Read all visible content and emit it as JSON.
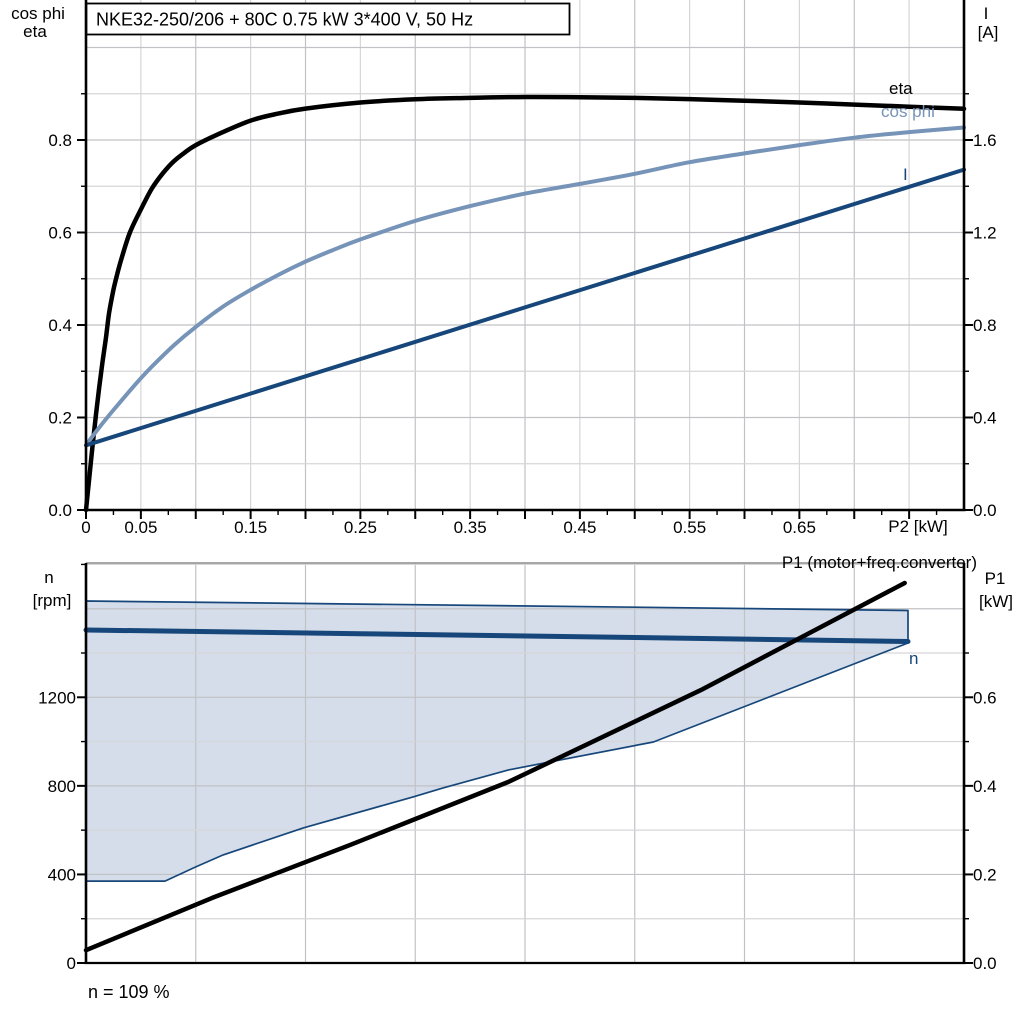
{
  "header": {
    "title": "NKE32-250/206 + 80C   0.75 kW   3*400 V, 50 Hz"
  },
  "labels": {
    "top_left": [
      "cos phi",
      "eta"
    ],
    "top_right": [
      "I",
      "[A]"
    ],
    "x_axis_title": "P2 [kW]",
    "curve_eta": "eta",
    "curve_cos_phi": "cos phi",
    "curve_current": "I",
    "bottom_left": [
      "n",
      "[rpm]"
    ],
    "bottom_right": [
      "P1",
      "[kW]"
    ],
    "p1_annotation": "P1 (motor+freq.converter)",
    "n_annotation": "n",
    "note": "n = 109 %"
  },
  "colors": {
    "black": "#000000",
    "light_blue": "#7693b8",
    "dark_blue": "#17477a",
    "area_fill": "#d4dde9",
    "grid_minor": "#d6d6d9",
    "grid_major": "#c2c2c6",
    "bottom_top_border": "#8c8c8c"
  },
  "chart_data": [
    {
      "type": "line",
      "title": "NKE32-250/206 + 80C   0.75 kW   3*400 V, 50 Hz",
      "xlabel": "P2 [kW]",
      "ylabel_left": "cos phi / eta",
      "ylabel_right": "I [A]",
      "xlim": [
        0,
        0.8
      ],
      "ylim_left": [
        0,
        1.1
      ],
      "ylim_right": [
        0,
        2.2
      ],
      "grid": true,
      "x_ticks": [
        0,
        0.05,
        0.1,
        0.15,
        0.2,
        0.25,
        0.3,
        0.35,
        0.4,
        0.45,
        0.5,
        0.55,
        0.6,
        0.65,
        0.7,
        0.75
      ],
      "x_tick_labels": [
        "0",
        "0.05",
        "",
        "0.15",
        "",
        "0.25",
        "",
        "0.35",
        "",
        "0.45",
        "",
        "0.55",
        "",
        "0.65",
        "",
        ""
      ],
      "y_left_ticks": [
        0,
        0.2,
        0.4,
        0.6,
        0.8
      ],
      "y_left_tick_labels": [
        "0.0",
        "0.2",
        "0.4",
        "0.6",
        "0.8"
      ],
      "y_right_ticks": [
        0,
        0.4,
        0.8,
        1.2,
        1.6
      ],
      "y_right_tick_labels": [
        "0.0",
        "0.4",
        "0.8",
        "1.2",
        "1.6"
      ],
      "series": [
        {
          "name": "eta",
          "axis": "left",
          "color_key": "black",
          "width": 4.5,
          "smooth": true,
          "points": [
            [
              0,
              0
            ],
            [
              0.003,
              0.07
            ],
            [
              0.006,
              0.14
            ],
            [
              0.009,
              0.205
            ],
            [
              0.012,
              0.265
            ],
            [
              0.015,
              0.32
            ],
            [
              0.018,
              0.37
            ],
            [
              0.021,
              0.425
            ],
            [
              0.025,
              0.476
            ],
            [
              0.029,
              0.515
            ],
            [
              0.0325,
              0.545
            ],
            [
              0.04,
              0.6
            ],
            [
              0.05,
              0.65
            ],
            [
              0.06,
              0.695
            ],
            [
              0.07,
              0.728
            ],
            [
              0.08,
              0.754
            ],
            [
              0.09,
              0.773
            ],
            [
              0.1,
              0.789
            ],
            [
              0.12,
              0.812
            ],
            [
              0.15,
              0.842
            ],
            [
              0.175,
              0.857
            ],
            [
              0.2,
              0.868
            ],
            [
              0.25,
              0.881
            ],
            [
              0.3,
              0.888
            ],
            [
              0.35,
              0.891
            ],
            [
              0.4,
              0.893
            ],
            [
              0.45,
              0.8925
            ],
            [
              0.5,
              0.891
            ],
            [
              0.55,
              0.8885
            ],
            [
              0.6,
              0.885
            ],
            [
              0.65,
              0.881
            ],
            [
              0.7,
              0.8765
            ],
            [
              0.75,
              0.872
            ],
            [
              0.8,
              0.8675
            ]
          ]
        },
        {
          "name": "cos phi",
          "axis": "left",
          "color_key": "light_blue",
          "width": 4,
          "smooth": true,
          "points": [
            [
              0,
              0.14
            ],
            [
              0.01,
              0.172
            ],
            [
              0.02,
              0.202
            ],
            [
              0.03,
              0.23
            ],
            [
              0.04,
              0.258
            ],
            [
              0.05,
              0.285
            ],
            [
              0.06,
              0.31
            ],
            [
              0.08,
              0.356
            ],
            [
              0.1,
              0.396
            ],
            [
              0.125,
              0.44
            ],
            [
              0.15,
              0.476
            ],
            [
              0.175,
              0.508
            ],
            [
              0.2,
              0.537
            ],
            [
              0.225,
              0.562
            ],
            [
              0.25,
              0.585
            ],
            [
              0.3,
              0.625
            ],
            [
              0.35,
              0.657
            ],
            [
              0.4,
              0.684
            ],
            [
              0.45,
              0.705
            ],
            [
              0.5,
              0.727
            ],
            [
              0.55,
              0.752
            ],
            [
              0.6,
              0.771
            ],
            [
              0.65,
              0.789
            ],
            [
              0.7,
              0.805
            ],
            [
              0.75,
              0.817
            ],
            [
              0.8,
              0.827
            ]
          ]
        },
        {
          "name": "I",
          "axis": "right",
          "color_key": "dark_blue",
          "width": 4,
          "smooth": false,
          "points": [
            [
              0,
              0.28
            ],
            [
              0.2,
              0.578
            ],
            [
              0.4,
              0.876
            ],
            [
              0.6,
              1.174
            ],
            [
              0.8,
              1.472
            ]
          ]
        }
      ]
    },
    {
      "type": "line+area",
      "xlabel": "",
      "ylabel_left": "n [rpm]",
      "ylabel_right": "P1 [kW]",
      "xlim": [
        0,
        0.8
      ],
      "ylim_left": [
        0,
        1806
      ],
      "ylim_right": [
        0,
        0.903
      ],
      "grid": true,
      "y_left_ticks": [
        0,
        400,
        800,
        1200
      ],
      "y_left_tick_labels": [
        "0",
        "400",
        "800",
        "1200"
      ],
      "y_right_ticks": [
        0,
        0.2,
        0.4,
        0.6
      ],
      "y_right_tick_labels": [
        "0.0",
        "0.2",
        "0.4",
        "0.6"
      ],
      "area_series": {
        "name": "speed operating range",
        "upper_rpm": [
          [
            0,
            1635
          ],
          [
            0.25,
            1621
          ],
          [
            0.5,
            1607
          ],
          [
            0.749,
            1592
          ]
        ],
        "lower_rpm": [
          [
            0,
            370
          ],
          [
            0.072,
            370
          ],
          [
            0.1,
            434
          ],
          [
            0.125,
            488
          ],
          [
            0.198,
            610
          ],
          [
            0.298,
            750
          ],
          [
            0.325,
            790
          ],
          [
            0.385,
            872
          ],
          [
            0.517,
            998
          ],
          [
            0.599,
            1156
          ],
          [
            0.702,
            1355
          ],
          [
            0.749,
            1445
          ]
        ]
      },
      "series": [
        {
          "name": "n",
          "axis": "left",
          "color_key": "dark_blue",
          "width": 5,
          "smooth": false,
          "points": [
            [
              0,
              1504
            ],
            [
              0.25,
              1487
            ],
            [
              0.5,
              1470
            ],
            [
              0.749,
              1452
            ]
          ]
        },
        {
          "name": "P1 (motor+freq.converter)",
          "axis": "right",
          "color_key": "black",
          "width": 4.5,
          "smooth": false,
          "points": [
            [
              0,
              0.029
            ],
            [
              0.115,
              0.147
            ],
            [
              0.241,
              0.267
            ],
            [
              0.385,
              0.409
            ],
            [
              0.56,
              0.616
            ],
            [
              0.746,
              0.858
            ]
          ]
        }
      ],
      "note": "n = 109 %"
    }
  ]
}
